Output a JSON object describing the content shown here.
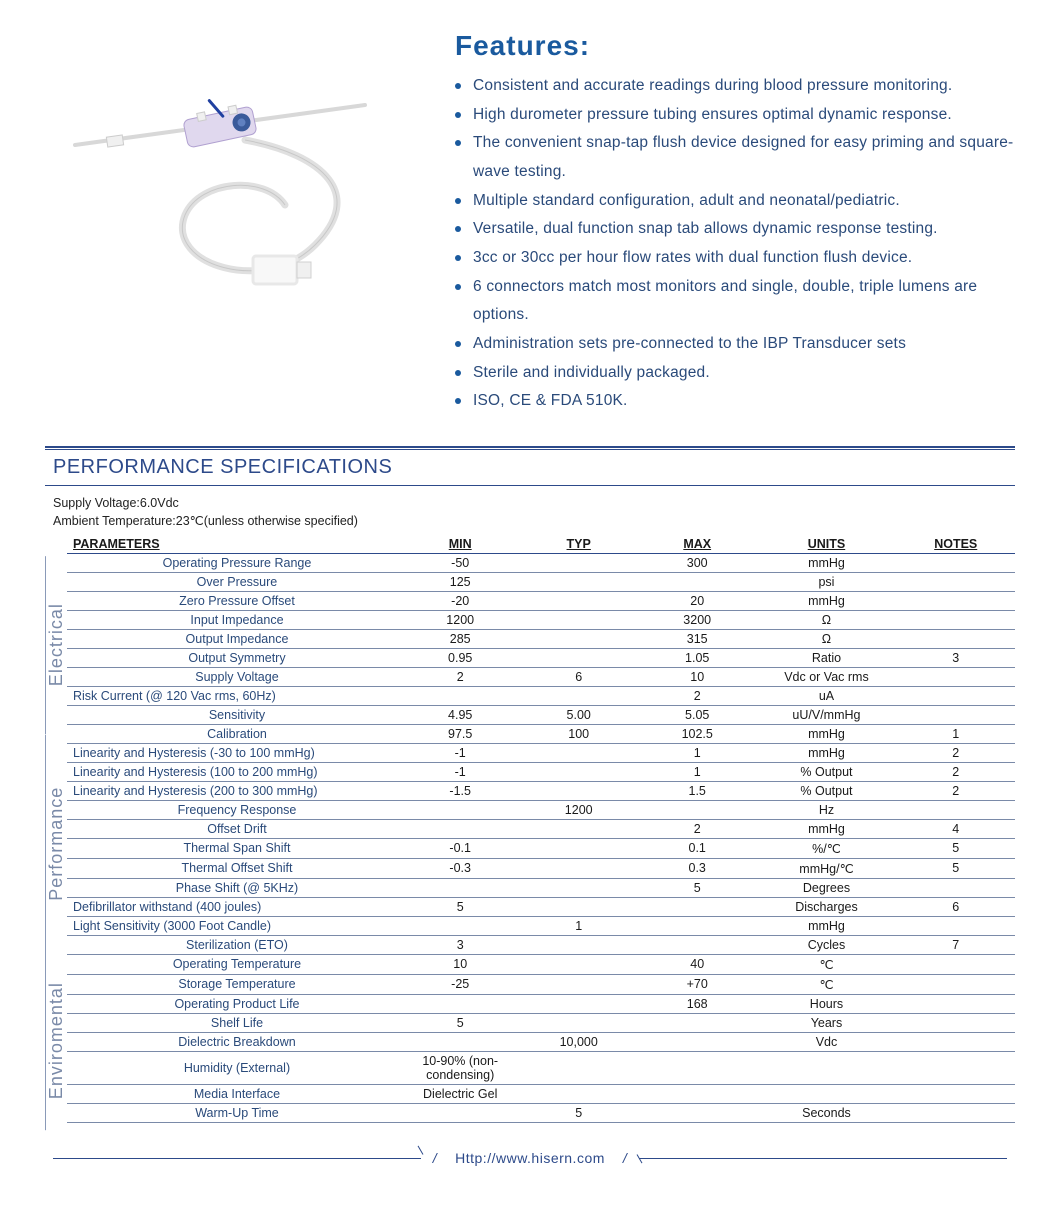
{
  "features": {
    "title": "Features:",
    "title_color": "#1a5a9e",
    "bullet_color": "#1a5a9e",
    "text_color": "#2a4a7a",
    "items": [
      "Consistent and accurate readings during blood pressure monitoring.",
      "High durometer pressure tubing ensures optimal dynamic response.",
      "The convenient snap-tap flush device designed for easy priming and square-wave testing.",
      "Multiple standard configuration, adult and neonatal/pediatric.",
      "Versatile, dual function snap tab allows dynamic response testing.",
      "3cc or 30cc per hour flow rates with dual function flush device.",
      "6 connectors match most monitors and single, double, triple lumens are options.",
      "Administration sets pre-connected to the IBP Transducer sets",
      "Sterile and individually packaged.",
      "ISO, CE & FDA 510K."
    ]
  },
  "spec": {
    "heading": "PERFORMANCE SPECIFICATIONS",
    "heading_color": "#2d4a8a",
    "rule_color": "#2d4a8a",
    "grid_color": "#7a8aa8",
    "conditions": [
      "Supply Voltage:6.0Vdc",
      "Ambient Temperature:23℃(unless otherwise specified)"
    ],
    "columns": [
      "PARAMETERS",
      "MIN",
      "TYP",
      "MAX",
      "UNITS",
      "NOTES"
    ],
    "category_label_color": "#7a8aa8",
    "sections": [
      {
        "label": "Electrical",
        "rows": [
          {
            "param": "Operating Pressure Range",
            "min": "-50",
            "typ": "",
            "max": "300",
            "units": "mmHg",
            "notes": ""
          },
          {
            "param": "Over  Pressure",
            "min": "125",
            "typ": "",
            "max": "",
            "units": "psi",
            "notes": ""
          },
          {
            "param": "Zero Pressure Offset",
            "min": "-20",
            "typ": "",
            "max": "20",
            "units": "mmHg",
            "notes": ""
          },
          {
            "param": "Input Impedance",
            "min": "1200",
            "typ": "",
            "max": "3200",
            "units": "Ω",
            "notes": ""
          },
          {
            "param": "Output Impedance",
            "min": "285",
            "typ": "",
            "max": "315",
            "units": "Ω",
            "notes": ""
          },
          {
            "param": "Output Symmetry",
            "min": "0.95",
            "typ": "",
            "max": "1.05",
            "units": "Ratio",
            "notes": "3"
          },
          {
            "param": "Supply Voltage",
            "min": "2",
            "typ": "6",
            "max": "10",
            "units": "Vdc or Vac rms",
            "notes": ""
          },
          {
            "param": "Risk Current (@ 120 Vac rms, 60Hz)",
            "min": "",
            "typ": "",
            "max": "2",
            "units": "uA",
            "notes": "",
            "left": true
          },
          {
            "param": "Sensitivity",
            "min": "4.95",
            "typ": "5.00",
            "max": "5.05",
            "units": "uU/V/mmHg",
            "notes": ""
          }
        ]
      },
      {
        "label": "Performance",
        "rows": [
          {
            "param": "Calibration",
            "min": "97.5",
            "typ": "100",
            "max": "102.5",
            "units": "mmHg",
            "notes": "1"
          },
          {
            "param": "Linearity and Hysteresis (-30 to 100 mmHg)",
            "min": "-1",
            "typ": "",
            "max": "1",
            "units": "mmHg",
            "notes": "2",
            "left": true
          },
          {
            "param": "Linearity and Hysteresis (100 to 200 mmHg)",
            "min": "-1",
            "typ": "",
            "max": "1",
            "units": "% Output",
            "notes": "2",
            "left": true
          },
          {
            "param": "Linearity and Hysteresis (200 to 300 mmHg)",
            "min": "-1.5",
            "typ": "",
            "max": "1.5",
            "units": "% Output",
            "notes": "2",
            "left": true
          },
          {
            "param": "Frequency Response",
            "min": "",
            "typ": "1200",
            "max": "",
            "units": "Hz",
            "notes": ""
          },
          {
            "param": "Offset Drift",
            "min": "",
            "typ": "",
            "max": "2",
            "units": "mmHg",
            "notes": "4"
          },
          {
            "param": "Thermal Span Shift",
            "min": "-0.1",
            "typ": "",
            "max": "0.1",
            "units": "%/℃",
            "notes": "5"
          },
          {
            "param": "Thermal Offset Shift",
            "min": "-0.3",
            "typ": "",
            "max": "0.3",
            "units": "mmHg/℃",
            "notes": "5"
          },
          {
            "param": "Phase Shift (@ 5KHz)",
            "min": "",
            "typ": "",
            "max": "5",
            "units": "Degrees",
            "notes": ""
          },
          {
            "param": "Defibrillator withstand (400 joules)",
            "min": "5",
            "typ": "",
            "max": "",
            "units": "Discharges",
            "notes": "6",
            "left": true
          },
          {
            "param": "Light Sensitivity (3000 Foot Candle)",
            "min": "",
            "typ": "1",
            "max": "",
            "units": "mmHg",
            "notes": "",
            "left": true
          }
        ]
      },
      {
        "label": "Enviromental",
        "rows": [
          {
            "param": "Sterilization (ETO)",
            "min": "3",
            "typ": "",
            "max": "",
            "units": "Cycles",
            "notes": "7"
          },
          {
            "param": "Operating Temperature",
            "min": "10",
            "typ": "",
            "max": "40",
            "units": "℃",
            "notes": ""
          },
          {
            "param": "Storage Temperature",
            "min": "-25",
            "typ": "",
            "max": "+70",
            "units": "℃",
            "notes": ""
          },
          {
            "param": "Operating Product Life",
            "min": "",
            "typ": "",
            "max": "168",
            "units": "Hours",
            "notes": ""
          },
          {
            "param": "Shelf Life",
            "min": "5",
            "typ": "",
            "max": "",
            "units": "Years",
            "notes": ""
          },
          {
            "param": "Dielectric Breakdown",
            "min": "",
            "typ": "10,000",
            "max": "",
            "units": "Vdc",
            "notes": ""
          },
          {
            "param": "Humidity (External)",
            "min": "10-90% (non-condensing)",
            "typ": "",
            "max": "",
            "units": "",
            "notes": ""
          },
          {
            "param": "Media Interface",
            "min": "Dielectric Gel",
            "typ": "",
            "max": "",
            "units": "",
            "notes": ""
          },
          {
            "param": "Warm-Up Time",
            "min": "",
            "typ": "5",
            "max": "",
            "units": "Seconds",
            "notes": ""
          }
        ]
      }
    ]
  },
  "footer": {
    "url": "Http://www.hisern.com",
    "color": "#2d4a8a"
  },
  "product_illustration": {
    "body_fill": "#e8e0f0",
    "body_stroke": "#aaa0c0",
    "accent_blue": "#3a5a9a",
    "tube_color": "#e0e0e0",
    "tube_stroke": "#c8c8c8",
    "connector_fill": "#f0f0f0",
    "connector_stroke": "#cccccc"
  }
}
